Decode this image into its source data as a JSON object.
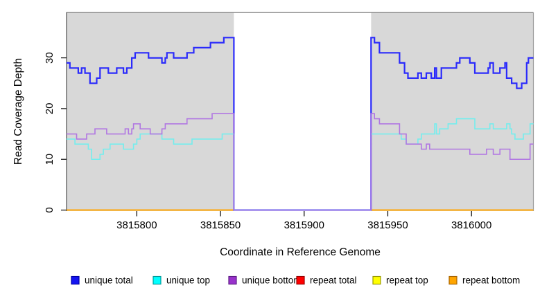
{
  "figure": {
    "x_axis_title": "Coordinate in Reference Genome",
    "y_axis_title": "Read Coverage Depth"
  },
  "chart_data": {
    "type": "line",
    "step": true,
    "title": "",
    "xlabel": "Coordinate in Reference Genome",
    "ylabel": "Read Coverage Depth",
    "x_domain": [
      3815758,
      3816037
    ],
    "ylim": [
      0,
      39
    ],
    "x_ticks": [
      3815800,
      3815850,
      3815900,
      3815950,
      3816000
    ],
    "y_ticks": [
      0,
      10,
      20,
      30
    ],
    "grid": false,
    "legend_position": "bottom",
    "shaded_region_color": "#D8D8D8",
    "shaded_regions": [
      [
        3815758,
        3815858
      ],
      [
        3815940,
        3816037
      ]
    ],
    "gap_region": [
      3815858,
      3815940
    ],
    "series": [
      {
        "name": "repeat total",
        "color": "#E00000",
        "line_width": 1.4,
        "points": [
          [
            3815758,
            0
          ]
        ]
      },
      {
        "name": "repeat top",
        "color": "#FFFF00",
        "line_width": 1.4,
        "points": [
          [
            3815758,
            0
          ]
        ]
      },
      {
        "name": "repeat bottom",
        "color": "#FFA500",
        "line_width": 2,
        "points": [
          [
            3815758,
            0
          ]
        ]
      },
      {
        "name": "unique total",
        "color": "#2B2BFB",
        "line_width": 2.2,
        "points": [
          [
            3815758,
            29
          ],
          [
            3815760,
            28
          ],
          [
            3815765,
            27
          ],
          [
            3815767,
            28
          ],
          [
            3815769,
            27
          ],
          [
            3815772,
            25
          ],
          [
            3815776,
            26
          ],
          [
            3815778,
            28
          ],
          [
            3815783,
            27
          ],
          [
            3815788,
            28
          ],
          [
            3815792,
            27
          ],
          [
            3815794,
            28
          ],
          [
            3815797,
            30
          ],
          [
            3815799,
            31
          ],
          [
            3815807,
            30
          ],
          [
            3815815,
            29
          ],
          [
            3815817,
            30
          ],
          [
            3815818,
            31
          ],
          [
            3815822,
            30
          ],
          [
            3815830,
            31
          ],
          [
            3815834,
            32
          ],
          [
            3815844,
            33
          ],
          [
            3815852,
            34
          ],
          [
            3815858,
            0
          ],
          [
            3815940,
            34
          ],
          [
            3815942,
            33
          ],
          [
            3815945,
            31
          ],
          [
            3815957,
            29
          ],
          [
            3815960,
            27
          ],
          [
            3815962,
            26
          ],
          [
            3815968,
            27
          ],
          [
            3815970,
            26
          ],
          [
            3815973,
            27
          ],
          [
            3815976,
            26
          ],
          [
            3815978,
            28
          ],
          [
            3815979,
            26
          ],
          [
            3815982,
            28
          ],
          [
            3815991,
            29
          ],
          [
            3815993,
            30
          ],
          [
            3815999,
            29
          ],
          [
            3816002,
            27
          ],
          [
            3816010,
            28
          ],
          [
            3816011,
            29
          ],
          [
            3816013,
            27
          ],
          [
            3816017,
            28
          ],
          [
            3816020,
            29
          ],
          [
            3816021,
            26
          ],
          [
            3816024,
            25
          ],
          [
            3816027,
            24
          ],
          [
            3816030,
            25
          ],
          [
            3816033,
            29
          ],
          [
            3816034,
            30
          ]
        ]
      },
      {
        "name": "unique top",
        "color": "#75EDED",
        "line_width": 1.6,
        "points": [
          [
            3815758,
            14
          ],
          [
            3815763,
            13
          ],
          [
            3815771,
            12
          ],
          [
            3815773,
            10
          ],
          [
            3815778,
            11
          ],
          [
            3815780,
            12
          ],
          [
            3815784,
            13
          ],
          [
            3815792,
            12
          ],
          [
            3815798,
            13
          ],
          [
            3815800,
            14
          ],
          [
            3815802,
            15
          ],
          [
            3815815,
            14
          ],
          [
            3815822,
            13
          ],
          [
            3815833,
            14
          ],
          [
            3815851,
            15
          ],
          [
            3815858,
            0
          ],
          [
            3815940,
            15
          ],
          [
            3815958,
            14
          ],
          [
            3815961,
            13
          ],
          [
            3815968,
            14
          ],
          [
            3815970,
            15
          ],
          [
            3815978,
            17
          ],
          [
            3815979,
            15
          ],
          [
            3815981,
            16
          ],
          [
            3815986,
            17
          ],
          [
            3815991,
            18
          ],
          [
            3816002,
            16
          ],
          [
            3816011,
            17
          ],
          [
            3816013,
            16
          ],
          [
            3816021,
            17
          ],
          [
            3816023,
            16
          ],
          [
            3816024,
            15
          ],
          [
            3816026,
            14
          ],
          [
            3816031,
            15
          ],
          [
            3816035,
            17
          ]
        ]
      },
      {
        "name": "unique bottom",
        "color": "#B177E2",
        "line_width": 1.6,
        "points": [
          [
            3815758,
            15
          ],
          [
            3815764,
            14
          ],
          [
            3815770,
            15
          ],
          [
            3815775,
            16
          ],
          [
            3815782,
            15
          ],
          [
            3815793,
            16
          ],
          [
            3815795,
            15
          ],
          [
            3815797,
            16
          ],
          [
            3815798,
            17
          ],
          [
            3815802,
            16
          ],
          [
            3815808,
            15
          ],
          [
            3815815,
            16
          ],
          [
            3815817,
            17
          ],
          [
            3815830,
            18
          ],
          [
            3815845,
            19
          ],
          [
            3815858,
            0
          ],
          [
            3815940,
            19
          ],
          [
            3815942,
            18
          ],
          [
            3815945,
            17
          ],
          [
            3815957,
            15
          ],
          [
            3815961,
            13
          ],
          [
            3815970,
            12
          ],
          [
            3815973,
            13
          ],
          [
            3815975,
            12
          ],
          [
            3815999,
            11
          ],
          [
            3816009,
            12
          ],
          [
            3816013,
            11
          ],
          [
            3816017,
            12
          ],
          [
            3816023,
            10
          ],
          [
            3816035,
            13
          ]
        ]
      }
    ]
  },
  "legend": {
    "items": [
      {
        "label": "unique total",
        "fill": "#1414F0",
        "stroke": "#0000A8"
      },
      {
        "label": "unique top",
        "fill": "#00FFFF",
        "stroke": "#009A9A"
      },
      {
        "label": "unique bottom",
        "fill": "#9932CC",
        "stroke": "#5E1C86"
      },
      {
        "label": "repeat total",
        "fill": "#FF0000",
        "stroke": "#990000"
      },
      {
        "label": "repeat top",
        "fill": "#FFFF00",
        "stroke": "#9A9A00"
      },
      {
        "label": "repeat bottom",
        "fill": "#FFA500",
        "stroke": "#A86500"
      }
    ]
  }
}
